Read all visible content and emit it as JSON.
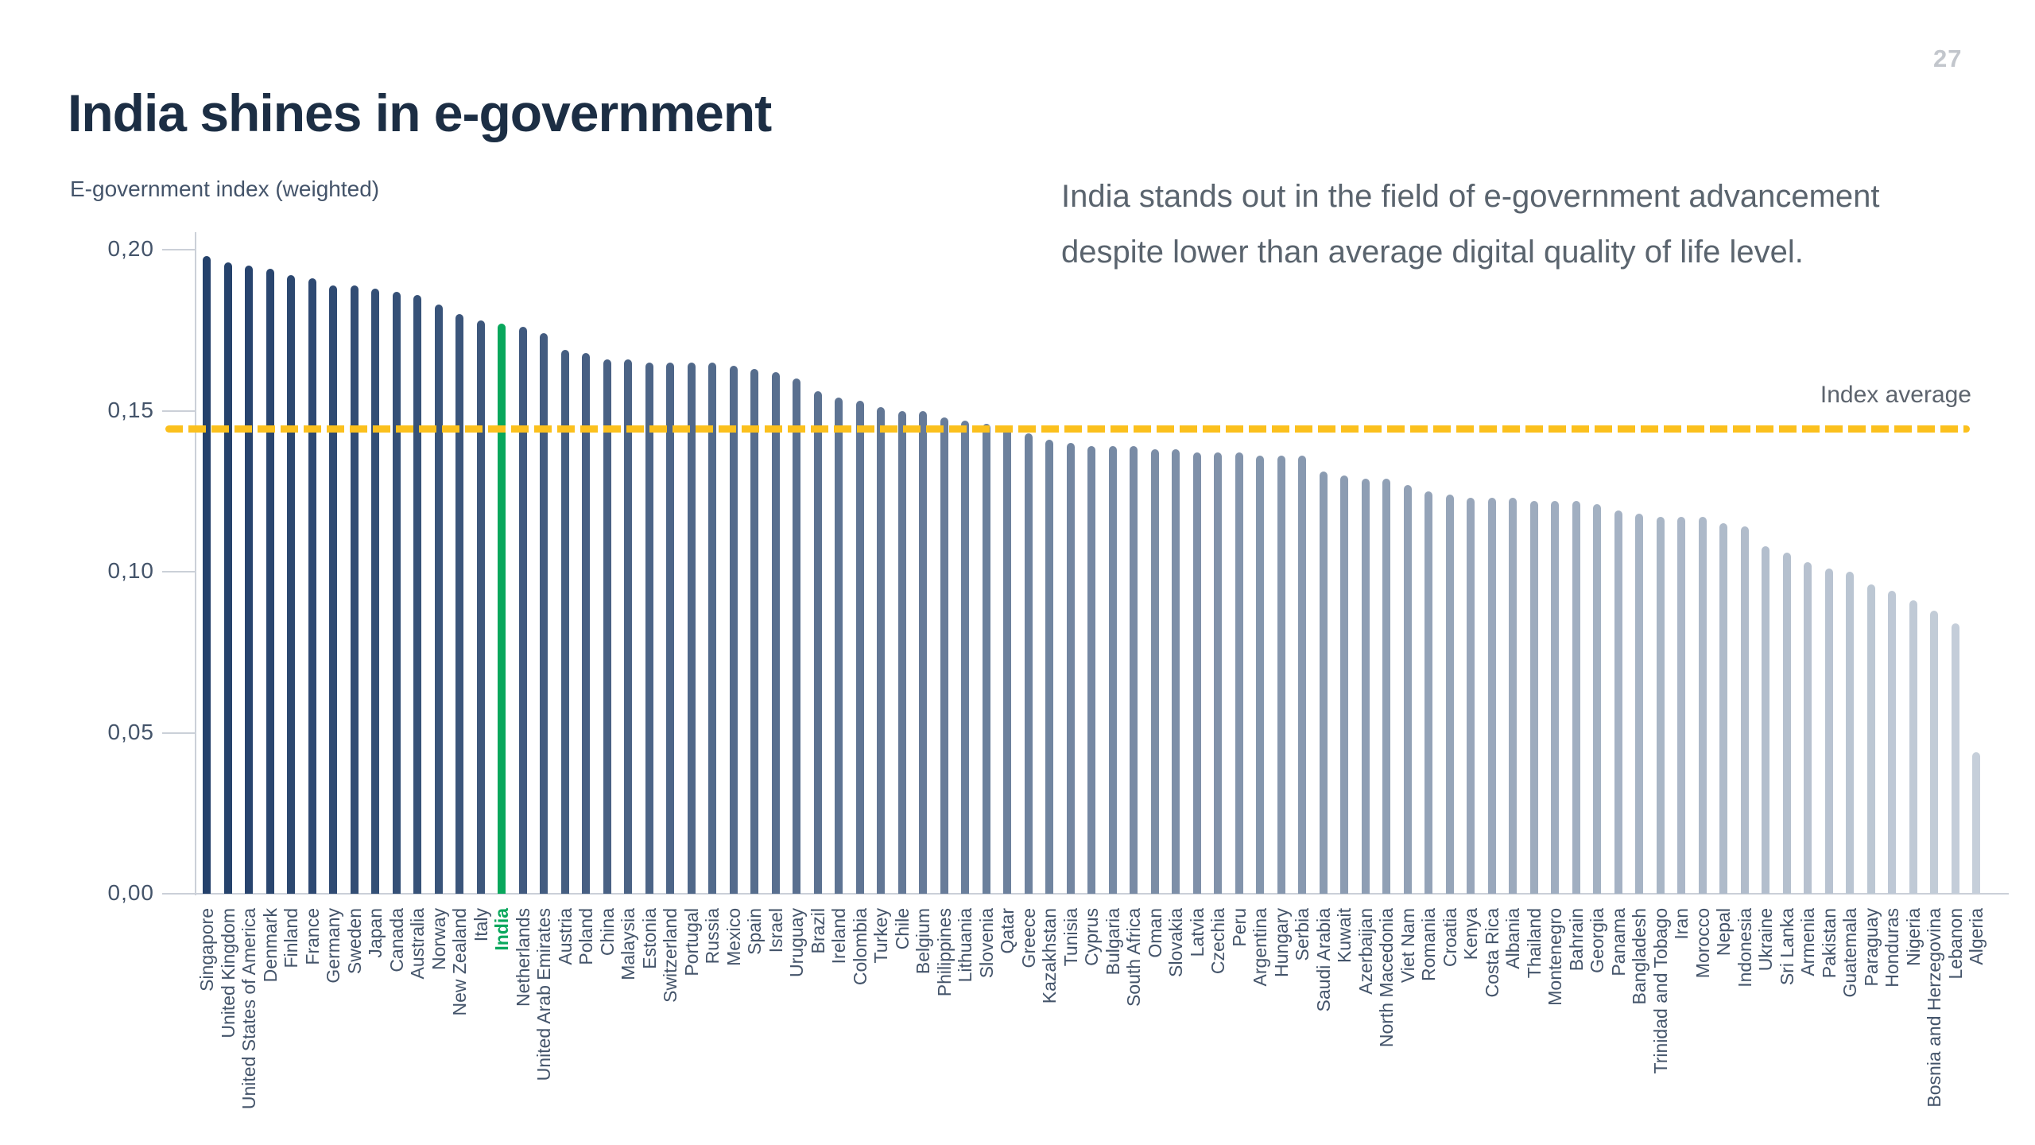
{
  "page": {
    "number": "27"
  },
  "header": {
    "title": "India shines in e-government",
    "subtitle": "E-government index (weighted)"
  },
  "annotation": {
    "line1": "India stands out in the field of e-government advancement",
    "line2": "despite lower than average digital quality of life level."
  },
  "chart_data": {
    "type": "bar",
    "title": "India shines in e-government",
    "ylabel": "E-government index (weighted)",
    "xlabel": "",
    "ylim": [
      0,
      0.21
    ],
    "grid": false,
    "legend_position": "none",
    "y_ticks": [
      {
        "label": "0,00",
        "value": 0.0
      },
      {
        "label": "0,05",
        "value": 0.05
      },
      {
        "label": "0,10",
        "value": 0.1
      },
      {
        "label": "0,15",
        "value": 0.15
      },
      {
        "label": "0,20",
        "value": 0.2
      }
    ],
    "average_line": {
      "label": "Index average",
      "value": 0.1445,
      "color": "#FBC01D",
      "style": "dashed"
    },
    "highlight": {
      "country": "India",
      "color": "#09A75C"
    },
    "bar_color_start": "#24416B",
    "bar_color_end": "#C6CFDA",
    "label_color": "#44546A",
    "categories": [
      "Singapore",
      "United Kingdom",
      "United States of America",
      "Denmark",
      "Finland",
      "France",
      "Germany",
      "Sweden",
      "Japan",
      "Canada",
      "Australia",
      "Norway",
      "New Zealand",
      "Italy",
      "India",
      "Netherlands",
      "United Arab Emirates",
      "Austria",
      "Poland",
      "China",
      "Malaysia",
      "Estonia",
      "Switzerland",
      "Portugal",
      "Russia",
      "Mexico",
      "Spain",
      "Israel",
      "Uruguay",
      "Brazil",
      "Ireland",
      "Colombia",
      "Turkey",
      "Chile",
      "Belgium",
      "Philippines",
      "Lithuania",
      "Slovenia",
      "Qatar",
      "Greece",
      "Kazakhstan",
      "Tunisia",
      "Cyprus",
      "Bulgaria",
      "South Africa",
      "Oman",
      "Slovakia",
      "Latvia",
      "Czechia",
      "Peru",
      "Argentina",
      "Hungary",
      "Serbia",
      "Saudi Arabia",
      "Kuwait",
      "Azerbaijan",
      "North Macedonia",
      "Viet Nam",
      "Romania",
      "Croatia",
      "Kenya",
      "Costa Rica",
      "Albania",
      "Thailand",
      "Montenegro",
      "Bahrain",
      "Georgia",
      "Panama",
      "Bangladesh",
      "Trinidad and Tobago",
      "Iran",
      "Morocco",
      "Nepal",
      "Indonesia",
      "Ukraine",
      "Sri Lanka",
      "Armenia",
      "Pakistan",
      "Guatemala",
      "Paraguay",
      "Honduras",
      "Nigeria",
      "Bosnia and Herzegovina",
      "Lebanon",
      "Algeria"
    ],
    "values": [
      0.198,
      0.196,
      0.195,
      0.194,
      0.192,
      0.191,
      0.189,
      0.189,
      0.188,
      0.187,
      0.186,
      0.183,
      0.18,
      0.178,
      0.177,
      0.176,
      0.174,
      0.169,
      0.168,
      0.166,
      0.166,
      0.165,
      0.165,
      0.165,
      0.165,
      0.164,
      0.163,
      0.162,
      0.16,
      0.156,
      0.154,
      0.153,
      0.151,
      0.15,
      0.15,
      0.148,
      0.147,
      0.146,
      0.145,
      0.143,
      0.141,
      0.14,
      0.139,
      0.139,
      0.139,
      0.138,
      0.138,
      0.137,
      0.137,
      0.137,
      0.136,
      0.136,
      0.136,
      0.131,
      0.13,
      0.129,
      0.129,
      0.127,
      0.125,
      0.124,
      0.123,
      0.123,
      0.123,
      0.122,
      0.122,
      0.122,
      0.121,
      0.119,
      0.118,
      0.117,
      0.117,
      0.117,
      0.115,
      0.114,
      0.108,
      0.106,
      0.103,
      0.101,
      0.1,
      0.096,
      0.094,
      0.091,
      0.088,
      0.084,
      0.044
    ]
  }
}
